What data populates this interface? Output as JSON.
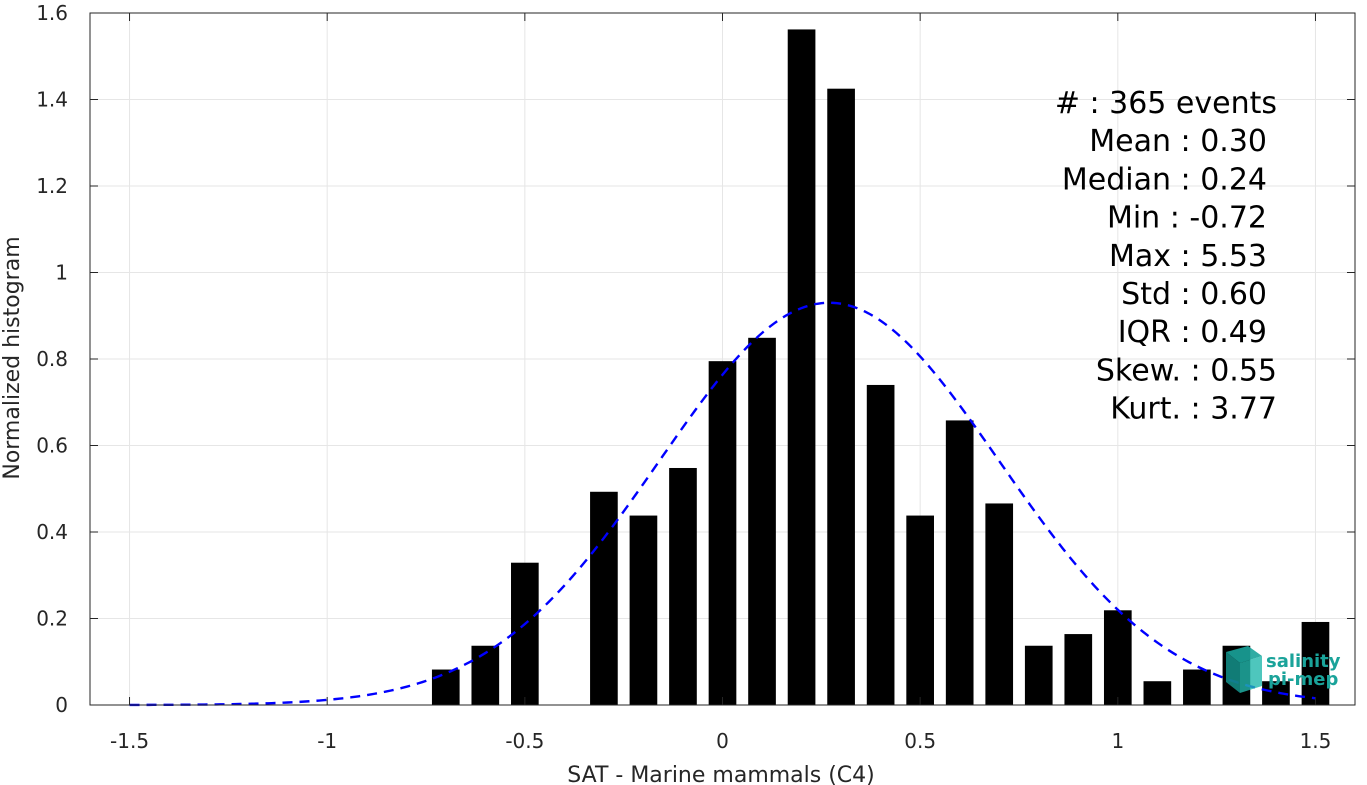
{
  "chart_data": {
    "type": "bar",
    "xlabel": "SAT - Marine mammals (C4)",
    "ylabel": "Normalized histogram",
    "xlim": [
      -1.6,
      1.6
    ],
    "ylim": [
      0,
      1.6
    ],
    "xticks": [
      -1.5,
      -1,
      -0.5,
      0,
      0.5,
      1,
      1.5
    ],
    "xtick_labels": [
      "-1.5",
      "-1",
      "-0.5",
      "0",
      "0.5",
      "1",
      "1.5"
    ],
    "yticks": [
      0,
      0.2,
      0.4,
      0.6,
      0.8,
      1,
      1.2,
      1.4,
      1.6
    ],
    "ytick_labels": [
      "0",
      "0.2",
      "0.4",
      "0.6",
      "0.8",
      "1",
      "1.2",
      "1.4",
      "1.6"
    ],
    "grid": true,
    "bar_color": "#000000",
    "bin_width": 0.1,
    "bar_relative_width": 0.7,
    "bins": [
      -0.7,
      -0.6,
      -0.5,
      -0.4,
      -0.3,
      -0.2,
      -0.1,
      0.0,
      0.1,
      0.2,
      0.3,
      0.4,
      0.5,
      0.6,
      0.7,
      0.8,
      0.9,
      1.0,
      1.1,
      1.2,
      1.3,
      1.4,
      1.5
    ],
    "values": [
      0.082,
      0.137,
      0.329,
      0.0,
      0.493,
      0.438,
      0.548,
      0.795,
      0.849,
      1.562,
      1.425,
      0.74,
      0.438,
      0.658,
      0.466,
      0.137,
      0.164,
      0.219,
      0.055,
      0.082,
      0.137,
      0.055,
      0.192
    ],
    "fit_curve": {
      "type": "normal",
      "mean": 0.27,
      "std": 0.43,
      "amplitude": 0.93,
      "x_range": [
        -1.5,
        1.5
      ],
      "color": "#0000ff",
      "dashed": true
    },
    "stats": [
      {
        "label": "#  : 365 events"
      },
      {
        "label": "Mean : 0.30"
      },
      {
        "label": "Median : 0.24"
      },
      {
        "label": "Min : -0.72"
      },
      {
        "label": "Max : 5.53"
      },
      {
        "label": "Std : 0.60"
      },
      {
        "label": "IQR : 0.49"
      },
      {
        "label": "Skew. : 0.55"
      },
      {
        "label": "Kurt. : 3.77"
      }
    ]
  },
  "logo": {
    "line1": "salinity",
    "line2": "pi-mep",
    "color": "#1aa39a"
  }
}
